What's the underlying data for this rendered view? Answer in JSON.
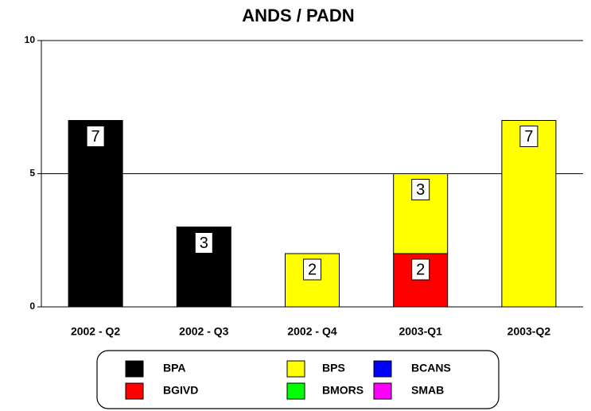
{
  "chart_data": {
    "type": "stacked_bar",
    "title": "ANDS / PADN",
    "categories": [
      "2002 - Q2",
      "2002 - Q3",
      "2002 - Q4",
      "2003-Q1",
      "2003-Q2"
    ],
    "series": [
      {
        "name": "BPA",
        "color": "#000000",
        "values": [
          7,
          3,
          0,
          0,
          0
        ]
      },
      {
        "name": "BGIVD",
        "color": "#ff0000",
        "values": [
          0,
          0,
          0,
          2,
          0
        ]
      },
      {
        "name": "BPS",
        "color": "#ffff00",
        "values": [
          0,
          0,
          2,
          3,
          7
        ]
      },
      {
        "name": "BMORS",
        "color": "#00ff00",
        "values": [
          0,
          0,
          0,
          0,
          0
        ]
      },
      {
        "name": "BCANS",
        "color": "#0000ff",
        "values": [
          0,
          0,
          0,
          0,
          0
        ]
      },
      {
        "name": "SMAB",
        "color": "#ff00ff",
        "values": [
          0,
          0,
          0,
          0,
          0
        ]
      }
    ],
    "ylim": [
      0,
      10
    ],
    "yticks": [
      0,
      5,
      10
    ],
    "grid": true,
    "legend": "bottom"
  }
}
